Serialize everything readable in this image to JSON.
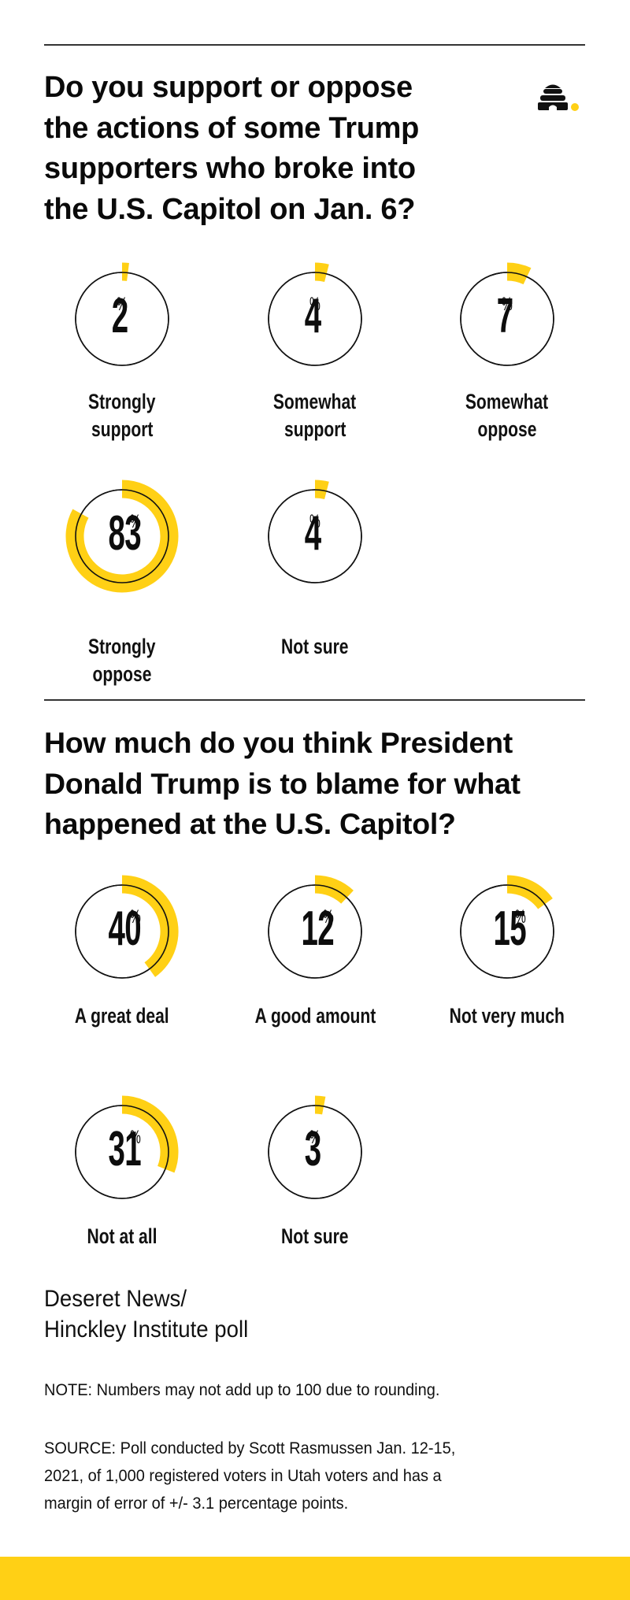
{
  "colors": {
    "accent": "#FFD015",
    "ring": "#111111",
    "rule": "#333333",
    "text": "#111111"
  },
  "logo": {
    "icon": "beehive-logo-icon"
  },
  "chart_data": [
    {
      "type": "pie",
      "subtype": "donut-gauges",
      "title": "Do you support or oppose the actions of some Trump supporters who broke into the U.S. Capitol on Jan. 6?",
      "title_lines": [
        "Do you support or oppose",
        "the actions of some Trump",
        "supporters who broke into",
        "the U.S. Capitol on Jan. 6?"
      ],
      "unit": "%",
      "categories": [
        "Strongly support",
        "Somewhat support",
        "Somewhat oppose",
        "Strongly oppose",
        "Not sure"
      ],
      "label_lines": [
        [
          "Strongly",
          "support"
        ],
        [
          "Somewhat",
          "support"
        ],
        [
          "Somewhat",
          "oppose"
        ],
        [
          "Strongly",
          "oppose"
        ],
        [
          "Not sure"
        ]
      ],
      "values": [
        2,
        4,
        7,
        83,
        4
      ]
    },
    {
      "type": "pie",
      "subtype": "donut-gauges",
      "title": "How much do you think President Donald Trump is to blame for what happened at the U.S. Capitol?",
      "title_lines": [
        "How much do you think President",
        "Donald Trump is to blame for what",
        "happened at the U.S. Capitol?"
      ],
      "unit": "%",
      "categories": [
        "A great deal",
        "A good amount",
        "Not very much",
        "Not at all",
        "Not sure"
      ],
      "label_lines": [
        [
          "A great deal"
        ],
        [
          "A good amount"
        ],
        [
          "Not very much"
        ],
        [
          "Not at all"
        ],
        [
          "Not sure"
        ]
      ],
      "values": [
        40,
        12,
        15,
        31,
        3
      ]
    }
  ],
  "credit": {
    "lines": [
      "Deseret News/",
      "Hinckley Institute poll"
    ]
  },
  "note": {
    "lines": [
      "NOTE: Numbers may not add up to 100 due to rounding."
    ]
  },
  "source": {
    "lines": [
      "SOURCE: Poll conducted by Scott Rasmussen Jan. 12-15,",
      "2021, of 1,000 registered voters in Utah voters and has a",
      "margin of error of +/- 3.1 percentage points."
    ]
  }
}
